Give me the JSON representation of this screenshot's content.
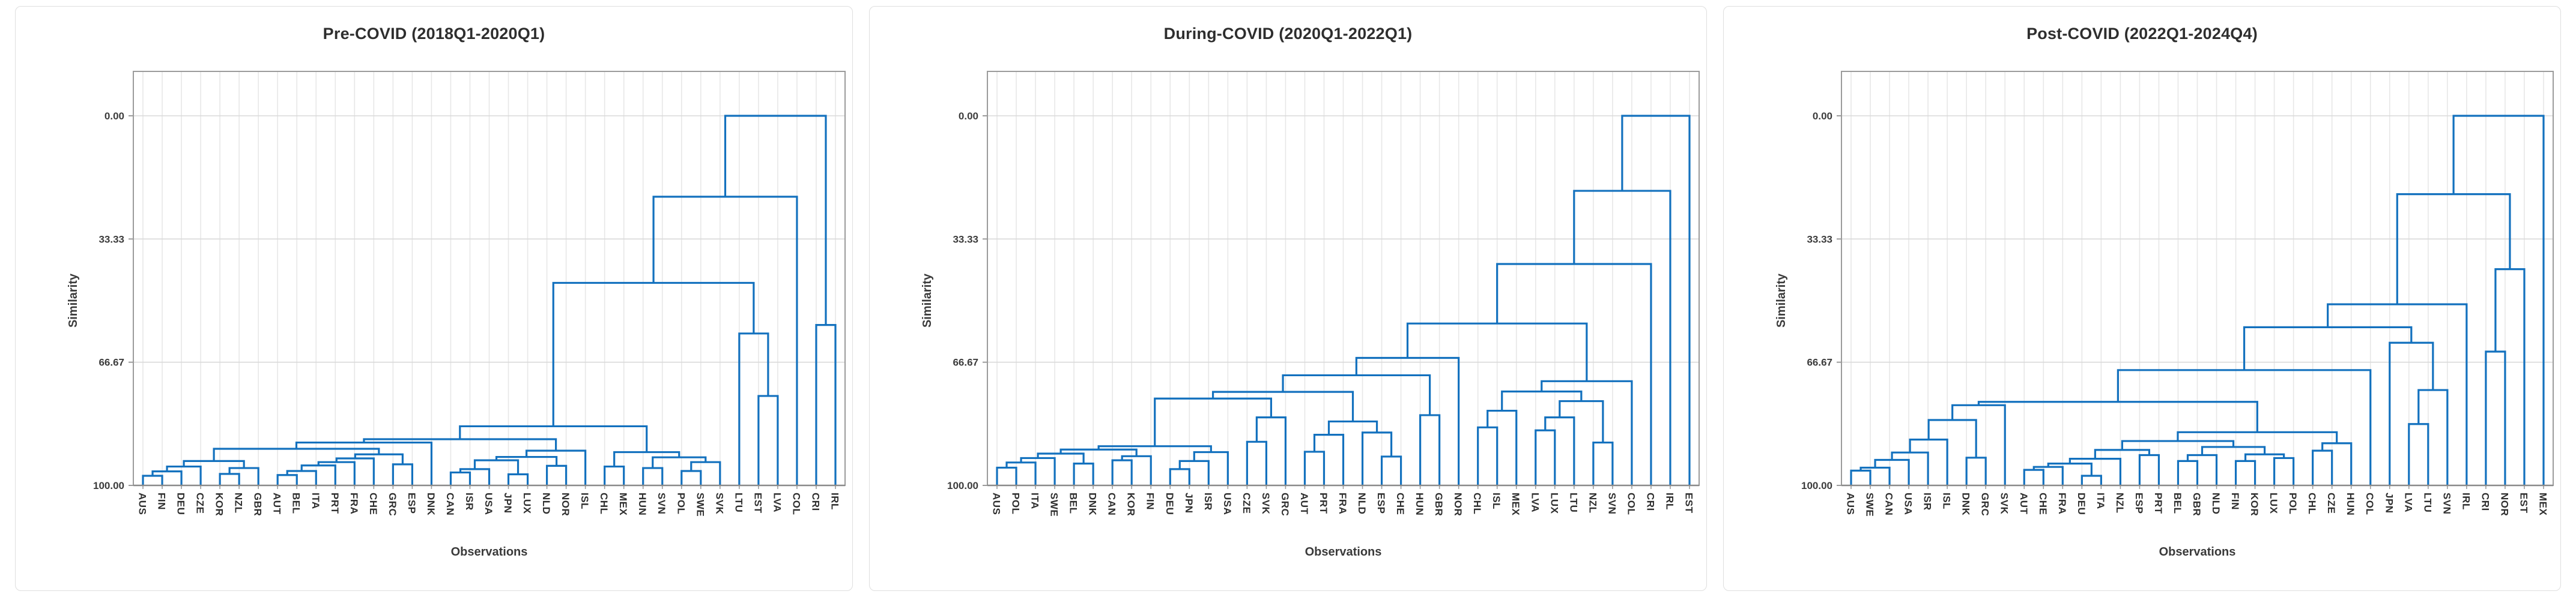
{
  "axis": {
    "ylabel": "Similarity",
    "xlabel": "Observations",
    "ytick_labels": [
      "0.00",
      "33.33",
      "66.67",
      "100.00"
    ],
    "ytick_values": [
      0,
      33.33,
      66.67,
      100
    ],
    "y_direction": "0.00 at top, 100.00 at bottom"
  },
  "style": {
    "branch_color": "#1371BE",
    "grid_vertical_color": "#e7e7e7",
    "grid_horizontal_color": "#d9d9d9",
    "frame_color": "#9b9b9b",
    "axis_line_color": "#8a8a8a",
    "tick_text_color": "#3c3c3c",
    "leaf_text_color": "#2f2f2f"
  },
  "chart_data": [
    {
      "type": "dendrogram",
      "title": "Pre-COVID (2018Q1-2020Q1)",
      "ylabel": "Similarity",
      "xlabel": "Observations",
      "ylim": [
        0,
        100
      ],
      "yticks": [
        "0.00",
        "33.33",
        "66.67",
        "100.00"
      ],
      "leaves": [
        "AUS",
        "FIN",
        "DEU",
        "CZE",
        "KOR",
        "NZL",
        "GBR",
        "AUT",
        "BEL",
        "ITA",
        "PRT",
        "FRA",
        "CHE",
        "GRC",
        "ESP",
        "DNK",
        "CAN",
        "ISR",
        "USA",
        "JPN",
        "LUX",
        "NLD",
        "NOR",
        "ISL",
        "CHL",
        "MEX",
        "HUN",
        "SVN",
        "POL",
        "SWE",
        "SVK",
        "LTU",
        "EST",
        "LVA",
        "COL",
        "CRI",
        "IRL"
      ],
      "merges": [
        [
          "AUS",
          "FIN",
          97.4
        ],
        [
          "#0",
          "DEU",
          96.2
        ],
        [
          "#1",
          "CZE",
          94.9
        ],
        [
          "KOR",
          "NZL",
          96.9
        ],
        [
          "#3",
          "GBR",
          95.3
        ],
        [
          "#2",
          "#4",
          93.4
        ],
        [
          "AUT",
          "BEL",
          97.2
        ],
        [
          "#6",
          "ITA",
          96.1
        ],
        [
          "#7",
          "PRT",
          94.6
        ],
        [
          "#8",
          "FRA",
          93.7
        ],
        [
          "#9",
          "CHE",
          92.7
        ],
        [
          "GRC",
          "ESP",
          94.3
        ],
        [
          "#10",
          "#11",
          91.6
        ],
        [
          "#5",
          "#12",
          90.1
        ],
        [
          "#13",
          "DNK",
          88.4
        ],
        [
          "CAN",
          "ISR",
          96.5
        ],
        [
          "#15",
          "USA",
          95.6
        ],
        [
          "JPN",
          "LUX",
          97.0
        ],
        [
          "#16",
          "#17",
          93.2
        ],
        [
          "NLD",
          "NOR",
          94.7
        ],
        [
          "#18",
          "#19",
          92.3
        ],
        [
          "#20",
          "ISL",
          90.6
        ],
        [
          "#14",
          "#21",
          87.5
        ],
        [
          "CHL",
          "MEX",
          94.9
        ],
        [
          "HUN",
          "SVN",
          95.3
        ],
        [
          "POL",
          "SWE",
          96.1
        ],
        [
          "#25",
          "SVK",
          93.7
        ],
        [
          "#24",
          "#26",
          92.4
        ],
        [
          "#23",
          "#27",
          91.0
        ],
        [
          "#22",
          "#28",
          84.0
        ],
        [
          "EST",
          "LVA",
          75.8
        ],
        [
          "LTU",
          "#30",
          58.9
        ],
        [
          "#29",
          "#31",
          45.2
        ],
        [
          "#32",
          "COL",
          21.9
        ],
        [
          "CRI",
          "IRL",
          56.6
        ],
        [
          "#33",
          "#34",
          0.0
        ]
      ]
    },
    {
      "type": "dendrogram",
      "title": "During-COVID (2020Q1-2022Q1)",
      "ylabel": "Similarity",
      "xlabel": "Observations",
      "ylim": [
        0,
        100
      ],
      "yticks": [
        "0.00",
        "33.33",
        "66.67",
        "100.00"
      ],
      "leaves": [
        "AUS",
        "POL",
        "ITA",
        "SWE",
        "BEL",
        "DNK",
        "CAN",
        "KOR",
        "FIN",
        "DEU",
        "JPN",
        "ISR",
        "USA",
        "CZE",
        "SVK",
        "GRC",
        "AUT",
        "PRT",
        "FRA",
        "NLD",
        "ESP",
        "CHE",
        "HUN",
        "GBR",
        "NOR",
        "CHL",
        "ISL",
        "MEX",
        "LVA",
        "LUX",
        "LTU",
        "NZL",
        "SVN",
        "COL",
        "CRI",
        "IRL",
        "EST"
      ],
      "merges": [
        [
          "AUS",
          "POL",
          95.2
        ],
        [
          "#0",
          "ITA",
          93.8
        ],
        [
          "#1",
          "SWE",
          92.6
        ],
        [
          "BEL",
          "DNK",
          94.1
        ],
        [
          "#2",
          "#3",
          91.4
        ],
        [
          "CAN",
          "KOR",
          93.2
        ],
        [
          "#5",
          "FIN",
          92.1
        ],
        [
          "#4",
          "#6",
          90.3
        ],
        [
          "DEU",
          "JPN",
          95.6
        ],
        [
          "#8",
          "ISR",
          93.4
        ],
        [
          "#9",
          "USA",
          91.0
        ],
        [
          "#7",
          "#10",
          89.4
        ],
        [
          "CZE",
          "SVK",
          88.2
        ],
        [
          "#12",
          "GRC",
          81.6
        ],
        [
          "#11",
          "#13",
          76.5
        ],
        [
          "AUT",
          "PRT",
          90.9
        ],
        [
          "#15",
          "FRA",
          86.3
        ],
        [
          "ESP",
          "CHE",
          92.2
        ],
        [
          "NLD",
          "#17",
          85.7
        ],
        [
          "#16",
          "#18",
          82.7
        ],
        [
          "#14",
          "#19",
          74.7
        ],
        [
          "HUN",
          "GBR",
          81.0
        ],
        [
          "#20",
          "#21",
          70.2
        ],
        [
          "#22",
          "NOR",
          65.5
        ],
        [
          "CHL",
          "ISL",
          84.3
        ],
        [
          "#24",
          "MEX",
          79.8
        ],
        [
          "LVA",
          "LUX",
          85.1
        ],
        [
          "#26",
          "LTU",
          81.6
        ],
        [
          "NZL",
          "SVN",
          88.4
        ],
        [
          "#27",
          "#28",
          77.2
        ],
        [
          "#25",
          "#29",
          74.6
        ],
        [
          "#30",
          "COL",
          71.8
        ],
        [
          "#23",
          "#31",
          56.2
        ],
        [
          "#32",
          "CRI",
          40.1
        ],
        [
          "#33",
          "IRL",
          20.3
        ],
        [
          "#34",
          "EST",
          0.0
        ]
      ]
    },
    {
      "type": "dendrogram",
      "title": "Post-COVID (2022Q1-2024Q4)",
      "ylabel": "Similarity",
      "xlabel": "Observations",
      "ylim": [
        0,
        100
      ],
      "yticks": [
        "0.00",
        "33.33",
        "66.67",
        "100.00"
      ],
      "leaves": [
        "AUS",
        "SWE",
        "CAN",
        "USA",
        "ISR",
        "ISL",
        "DNK",
        "GRC",
        "SVK",
        "AUT",
        "CHE",
        "FRA",
        "DEU",
        "ITA",
        "NZL",
        "ESP",
        "PRT",
        "BEL",
        "GBR",
        "NLD",
        "FIN",
        "KOR",
        "LUX",
        "POL",
        "CHL",
        "CZE",
        "HUN",
        "COL",
        "JPN",
        "LVA",
        "LTU",
        "SVN",
        "IRL",
        "CRI",
        "NOR",
        "EST",
        "MEX"
      ],
      "merges": [
        [
          "AUS",
          "SWE",
          96.0
        ],
        [
          "#0",
          "CAN",
          95.2
        ],
        [
          "#1",
          "USA",
          93.1
        ],
        [
          "#2",
          "ISR",
          91.1
        ],
        [
          "#3",
          "ISL",
          87.6
        ],
        [
          "DNK",
          "GRC",
          92.5
        ],
        [
          "#4",
          "#5",
          82.3
        ],
        [
          "#6",
          "SVK",
          78.3
        ],
        [
          "AUT",
          "CHE",
          95.8
        ],
        [
          "#8",
          "FRA",
          95.0
        ],
        [
          "DEU",
          "ITA",
          97.4
        ],
        [
          "#9",
          "#10",
          94.1
        ],
        [
          "#11",
          "NZL",
          92.8
        ],
        [
          "ESP",
          "PRT",
          91.8
        ],
        [
          "#12",
          "#13",
          90.4
        ],
        [
          "BEL",
          "GBR",
          93.4
        ],
        [
          "#15",
          "NLD",
          91.8
        ],
        [
          "FIN",
          "KOR",
          93.4
        ],
        [
          "LUX",
          "POL",
          92.6
        ],
        [
          "#17",
          "#18",
          91.6
        ],
        [
          "#16",
          "#19",
          89.6
        ],
        [
          "#14",
          "#20",
          88.0
        ],
        [
          "CHL",
          "CZE",
          90.6
        ],
        [
          "#22",
          "HUN",
          88.6
        ],
        [
          "#21",
          "#23",
          85.6
        ],
        [
          "#7",
          "#24",
          77.4
        ],
        [
          "#25",
          "COL",
          68.8
        ],
        [
          "LVA",
          "LTU",
          83.4
        ],
        [
          "#27",
          "SVN",
          74.2
        ],
        [
          "JPN",
          "#28",
          61.4
        ],
        [
          "#26",
          "#29",
          57.2
        ],
        [
          "#30",
          "IRL",
          51.0
        ],
        [
          "CRI",
          "NOR",
          63.8
        ],
        [
          "#32",
          "EST",
          41.5
        ],
        [
          "#31",
          "#33",
          21.2
        ],
        [
          "#34",
          "MEX",
          0.0
        ]
      ]
    }
  ]
}
